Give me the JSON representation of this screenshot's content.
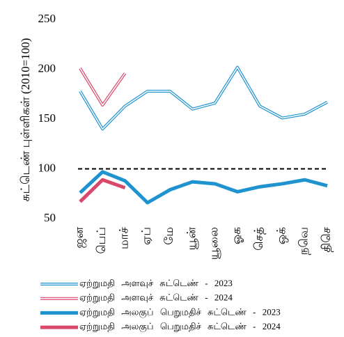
{
  "chart_data": {
    "type": "line",
    "y_label": "சுட்டெண் புள்ளிகள் (2010=100)",
    "categories": [
      "ஜன",
      "பெப்",
      "மாச்",
      "ஏப்",
      "மே",
      "யூன்",
      "யூலை",
      "ஓக",
      "செத்",
      "ஒக்",
      "நவெ",
      "திசெ"
    ],
    "series": [
      {
        "name": "ஏற்றுமதி அளவுச் சுட்டெண் - 2023",
        "color": "#1f93cf",
        "style": "outline",
        "values": [
          178,
          140,
          163,
          178,
          178,
          160,
          166,
          202,
          163,
          151,
          155,
          167
        ]
      },
      {
        "name": "ஏற்றுமதி அளவுச் சுட்டெண் - 2024",
        "color": "#d9476b",
        "style": "outline",
        "values": [
          201,
          164,
          196,
          null,
          null,
          null,
          null,
          null,
          null,
          null,
          null,
          null
        ]
      },
      {
        "name": "ஏற்றுமதி அலகுப் பெறுமதிச் சுட்டெண் - 2023",
        "color": "#1f93cf",
        "style": "solid",
        "values": [
          76,
          97,
          88,
          66,
          79,
          87,
          85,
          77,
          82,
          85,
          89,
          83
        ]
      },
      {
        "name": "ஏற்றுமதி அலகுப் பெறுமதிச் சுட்டெண் - 2024",
        "color": "#d9476b",
        "style": "solid",
        "values": [
          67,
          89,
          81,
          null,
          null,
          null,
          null,
          null,
          null,
          null,
          null,
          null
        ]
      }
    ],
    "reference_line": 100,
    "ylim": [
      50,
      250
    ],
    "yticks": [
      50,
      100,
      150,
      200,
      250
    ],
    "grid": false
  }
}
